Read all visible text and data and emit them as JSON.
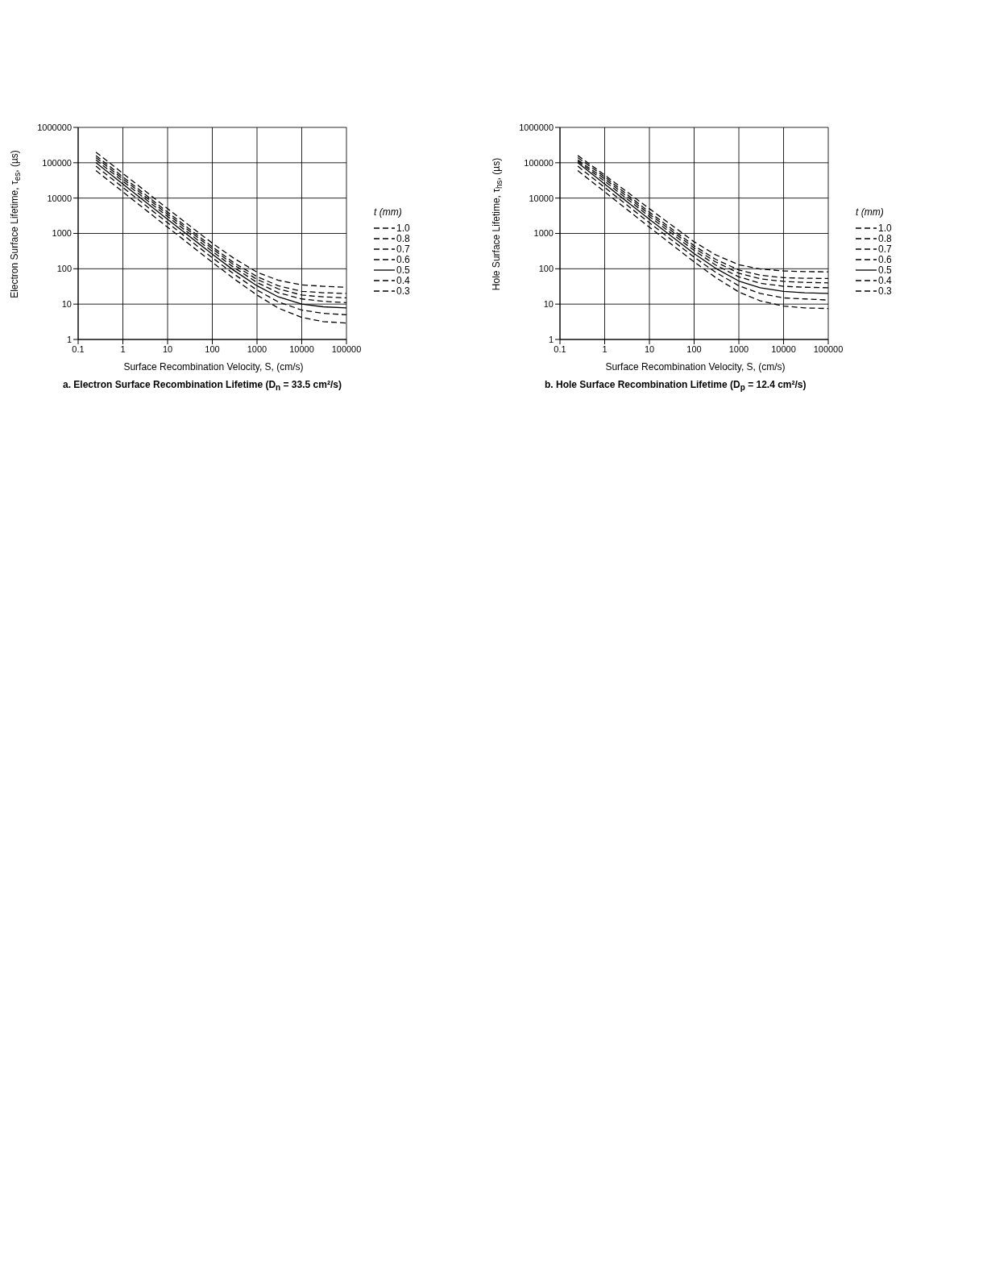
{
  "chart_data": [
    {
      "type": "line",
      "title": "a.  Electron Surface Recombination Lifetime (D$_{n}$ = 33.5 cm²/s)",
      "xlabel": "Surface Recombination Velocity, S, (cm/s)",
      "ylabel": "Electron Surface Lifetime, τ$_{es}$, (µs)",
      "legend_title": "t (mm)",
      "log": "xy",
      "grid": true,
      "legend": "right",
      "xlim": [
        0.1,
        100000
      ],
      "xticks": [
        0.1,
        1,
        10,
        100,
        1000,
        10000,
        100000
      ],
      "ylim": [
        1,
        1000000
      ],
      "yticks": [
        1,
        10,
        100,
        1000,
        10000,
        100000,
        1000000
      ],
      "x": [
        0.25,
        1,
        10,
        100,
        300,
        1000,
        3000,
        10000,
        30000,
        100000
      ],
      "series": [
        {
          "name": "1.0",
          "color": "#000000",
          "line_style": "dashed",
          "values": [
            200000,
            50000,
            5000,
            530,
            200,
            80,
            47,
            35,
            32,
            30
          ]
        },
        {
          "name": "0.8",
          "color": "#000000",
          "line_style": "dashed",
          "values": [
            160000,
            40000,
            4000,
            420,
            150,
            60,
            33,
            23,
            21,
            20
          ]
        },
        {
          "name": "0.7",
          "color": "#000000",
          "line_style": "dashed",
          "values": [
            140000,
            35000,
            3500,
            370,
            130,
            50,
            27,
            18,
            16,
            15
          ]
        },
        {
          "name": "0.6",
          "color": "#000000",
          "line_style": "dashed",
          "values": [
            120000,
            30000,
            3000,
            310,
            110,
            41,
            21,
            14,
            12,
            11
          ]
        },
        {
          "name": "0.5",
          "color": "#000000",
          "line_style": "solid",
          "values": [
            100000,
            25000,
            2500,
            260,
            91,
            33,
            16,
            10,
            8.4,
            7.8
          ]
        },
        {
          "name": "0.4",
          "color": "#000000",
          "line_style": "dashed",
          "values": [
            80000,
            20000,
            2000,
            205,
            72,
            25,
            11.5,
            6.8,
            5.5,
            5
          ]
        },
        {
          "name": "0.3",
          "color": "#000000",
          "line_style": "dashed",
          "values": [
            60000,
            15000,
            1500,
            153,
            53,
            18,
            7.7,
            4.2,
            3.2,
            2.9
          ]
        }
      ]
    },
    {
      "type": "line",
      "title": "b.  Hole Surface Recombination Lifetime (D$_{p}$ = 12.4 cm²/s)",
      "xlabel": "Surface Recombination Velocity, S, (cm/s)",
      "ylabel": "Hole Surface Lifetime, τ$_{hs}$, (µs)",
      "legend_title": "t (mm)",
      "log": "xy",
      "grid": true,
      "legend": "right",
      "xlim": [
        0.1,
        100000
      ],
      "xticks": [
        0.1,
        1,
        10,
        100,
        1000,
        10000,
        100000
      ],
      "ylim": [
        1,
        1000000
      ],
      "yticks": [
        1,
        10,
        100,
        1000,
        10000,
        100000,
        1000000
      ],
      "x": [
        0.25,
        1,
        10,
        100,
        300,
        1000,
        3000,
        10000,
        30000,
        100000
      ],
      "series": [
        {
          "name": "1.0",
          "color": "#000000",
          "line_style": "dashed",
          "values": [
            160000,
            45000,
            5000,
            580,
            250,
            130,
            98,
            87,
            83,
            82
          ]
        },
        {
          "name": "0.8",
          "color": "#000000",
          "line_style": "dashed",
          "values": [
            140000,
            40000,
            4000,
            450,
            186,
            92,
            66,
            56,
            54,
            53
          ]
        },
        {
          "name": "0.7",
          "color": "#000000",
          "line_style": "dashed",
          "values": [
            120000,
            35000,
            3500,
            390,
            157,
            75,
            52,
            44,
            41,
            40
          ]
        },
        {
          "name": "0.6",
          "color": "#000000",
          "line_style": "dashed",
          "values": [
            110000,
            30000,
            3000,
            330,
            129,
            59,
            39,
            32,
            30,
            29
          ]
        },
        {
          "name": "0.5",
          "color": "#000000",
          "line_style": "solid",
          "values": [
            100000,
            25000,
            2500,
            270,
            104,
            45,
            29,
            23,
            21,
            20
          ]
        },
        {
          "name": "0.4",
          "color": "#000000",
          "line_style": "dashed",
          "values": [
            80000,
            20000,
            2000,
            213,
            80,
            33,
            20,
            15,
            14,
            13
          ]
        },
        {
          "name": "0.3",
          "color": "#000000",
          "line_style": "dashed",
          "values": [
            60000,
            15000,
            1500,
            157,
            57,
            22,
            12.4,
            8.8,
            7.8,
            7.5
          ]
        }
      ]
    }
  ]
}
